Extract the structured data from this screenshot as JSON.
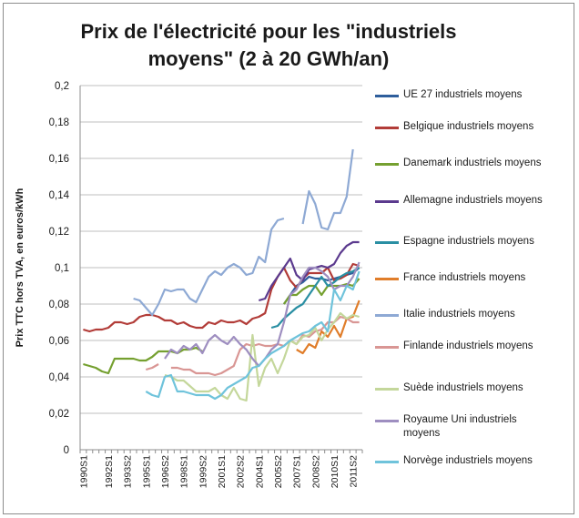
{
  "chart_data": {
    "type": "line",
    "title": "Prix de l'électricité pour les \"industriels moyens\" (2 à 20 GWh/an)",
    "ylabel": "Prix TTC hors TVA, en euros/kWh",
    "xlabel": "",
    "ylim": [
      0,
      0.2
    ],
    "yticks": [
      "0",
      "0,02",
      "0,04",
      "0,06",
      "0,08",
      "0,1",
      "0,12",
      "0,14",
      "0,16",
      "0,18",
      "0,2"
    ],
    "x": [
      "1990S1",
      "1990S2",
      "1991S1",
      "1991S2",
      "1992S1",
      "1992S2",
      "1993S1",
      "1993S2",
      "1994S1",
      "1994S2",
      "1995S1",
      "1995S2",
      "1996S1",
      "1996S2",
      "1997S1",
      "1997S2",
      "1998S1",
      "1998S2",
      "1999S1",
      "1999S2",
      "2000S1",
      "2000S2",
      "2001S1",
      "2001S2",
      "2002S1",
      "2002S2",
      "2003S1",
      "2003S2",
      "2004S1",
      "2004S2",
      "2005S1",
      "2005S2",
      "2006S1",
      "2006S2",
      "2007S1",
      "2007S2",
      "2008S1",
      "2008S2",
      "2009S1",
      "2009S2",
      "2010S1",
      "2010S2",
      "2011S1",
      "2011S2",
      "2012S1"
    ],
    "xticklabels": [
      "1990S1",
      "1992S1",
      "1993S2",
      "1995S1",
      "1996S2",
      "1998S1",
      "1999S2",
      "2001S1",
      "2002S2",
      "2004S1",
      "2005S2",
      "2007S1",
      "2008S2",
      "2010S1",
      "2011S2"
    ],
    "legend_position": "right",
    "grid": "horizontal",
    "series": [
      {
        "name": "UE 27 industriels moyens",
        "color": "#2e5e9c",
        "values": [
          null,
          null,
          null,
          null,
          null,
          null,
          null,
          null,
          null,
          null,
          null,
          null,
          null,
          null,
          null,
          null,
          null,
          null,
          null,
          null,
          null,
          null,
          null,
          null,
          null,
          null,
          null,
          null,
          null,
          null,
          null,
          null,
          0.08,
          0.085,
          0.09,
          0.092,
          0.095,
          0.094,
          0.094,
          0.093,
          0.094,
          0.095,
          0.096,
          0.097,
          0.1
        ]
      },
      {
        "name": "Belgique industriels moyens",
        "color": "#b23c38",
        "values": [
          0.066,
          0.065,
          0.066,
          0.066,
          0.067,
          0.07,
          0.07,
          0.069,
          0.07,
          0.073,
          0.074,
          0.074,
          0.073,
          0.071,
          0.071,
          0.069,
          0.07,
          0.068,
          0.067,
          0.067,
          0.07,
          0.069,
          0.071,
          0.07,
          0.07,
          0.071,
          0.069,
          0.072,
          0.073,
          0.075,
          0.088,
          0.095,
          0.1,
          0.093,
          0.089,
          0.094,
          0.097,
          0.097,
          0.097,
          0.1,
          0.093,
          0.094,
          0.096,
          0.102,
          0.101
        ]
      },
      {
        "name": "Danemark industriels moyens",
        "color": "#75a030",
        "values": [
          0.047,
          0.046,
          0.045,
          0.043,
          0.042,
          0.05,
          0.05,
          0.05,
          0.05,
          0.049,
          0.049,
          0.051,
          0.054,
          0.054,
          0.054,
          0.053,
          0.055,
          0.055,
          0.056,
          0.054,
          null,
          null,
          null,
          null,
          null,
          null,
          null,
          null,
          null,
          null,
          null,
          null,
          0.08,
          0.085,
          0.085,
          0.088,
          0.09,
          0.09,
          0.085,
          0.09,
          0.09,
          0.09,
          0.091,
          0.09,
          0.094
        ]
      },
      {
        "name": "Allemagne industriels moyens",
        "color": "#5b3a8e",
        "values": [
          null,
          null,
          null,
          null,
          null,
          null,
          null,
          null,
          null,
          null,
          null,
          null,
          null,
          null,
          null,
          null,
          null,
          null,
          null,
          null,
          null,
          null,
          null,
          null,
          null,
          null,
          null,
          null,
          0.082,
          0.083,
          0.09,
          0.095,
          0.1,
          0.105,
          0.096,
          0.093,
          0.099,
          0.1,
          0.101,
          0.1,
          0.102,
          0.108,
          0.112,
          0.114,
          0.114
        ]
      },
      {
        "name": "Espagne industriels moyens",
        "color": "#2a8fa3",
        "values": [
          null,
          null,
          null,
          null,
          null,
          null,
          null,
          null,
          null,
          null,
          null,
          null,
          null,
          null,
          null,
          null,
          null,
          null,
          null,
          null,
          null,
          null,
          null,
          null,
          null,
          null,
          null,
          null,
          null,
          null,
          0.067,
          0.068,
          0.072,
          0.075,
          0.078,
          0.08,
          0.085,
          0.09,
          0.095,
          0.09,
          0.092,
          0.095,
          0.097,
          0.098,
          0.1
        ]
      },
      {
        "name": "France industriels moyens",
        "color": "#e07d2a",
        "values": [
          null,
          null,
          null,
          null,
          null,
          null,
          null,
          null,
          null,
          null,
          null,
          null,
          null,
          null,
          null,
          null,
          null,
          null,
          null,
          null,
          null,
          null,
          null,
          null,
          null,
          null,
          null,
          null,
          null,
          null,
          null,
          null,
          null,
          null,
          0.055,
          0.053,
          0.058,
          0.056,
          0.065,
          0.062,
          0.068,
          0.062,
          0.072,
          0.073,
          0.082
        ]
      },
      {
        "name": "Italie  industriels moyens",
        "color": "#8ea9d4",
        "values": [
          null,
          null,
          null,
          null,
          null,
          null,
          null,
          null,
          0.083,
          0.082,
          0.078,
          0.074,
          0.08,
          0.088,
          0.087,
          0.088,
          0.088,
          0.083,
          0.081,
          0.088,
          0.095,
          0.098,
          0.096,
          0.1,
          0.102,
          0.1,
          0.096,
          0.097,
          0.106,
          0.103,
          0.121,
          0.126,
          0.127,
          null,
          null,
          0.124,
          0.142,
          0.135,
          0.122,
          0.121,
          0.13,
          0.13,
          0.139,
          0.165,
          null
        ]
      },
      {
        "name": "Finlande industriels moyens",
        "color": "#d99694",
        "values": [
          null,
          null,
          null,
          null,
          null,
          null,
          null,
          null,
          null,
          null,
          0.044,
          0.045,
          0.047,
          null,
          0.045,
          0.045,
          0.044,
          0.044,
          0.042,
          0.042,
          0.042,
          0.041,
          0.042,
          0.044,
          0.046,
          0.055,
          0.058,
          0.057,
          0.058,
          0.057,
          0.057,
          0.058,
          0.057,
          0.06,
          0.058,
          0.063,
          0.062,
          0.065,
          0.066,
          0.07,
          0.07,
          0.073,
          0.072,
          0.07,
          0.07
        ]
      },
      {
        "name": "Suède industriels moyens",
        "color": "#c4d79b",
        "values": [
          null,
          null,
          null,
          null,
          null,
          null,
          null,
          null,
          null,
          null,
          null,
          null,
          null,
          0.041,
          0.04,
          0.038,
          0.038,
          0.035,
          0.032,
          0.032,
          0.032,
          0.034,
          0.03,
          0.028,
          0.034,
          0.028,
          0.027,
          0.063,
          0.035,
          0.045,
          0.05,
          0.042,
          0.05,
          0.06,
          0.058,
          0.062,
          0.063,
          0.067,
          0.06,
          0.066,
          0.07,
          0.075,
          0.072,
          0.074,
          0.073
        ]
      },
      {
        "name": "Royaume Uni industriels moyens",
        "color": "#9e8ec0",
        "values": [
          null,
          null,
          null,
          null,
          null,
          null,
          null,
          null,
          null,
          null,
          null,
          null,
          null,
          0.05,
          0.055,
          0.053,
          0.057,
          0.055,
          0.058,
          0.053,
          0.06,
          0.063,
          0.06,
          0.058,
          0.062,
          0.058,
          0.055,
          0.05,
          0.046,
          0.05,
          0.055,
          0.058,
          0.07,
          0.085,
          0.088,
          0.095,
          0.1,
          0.1,
          0.098,
          0.095,
          0.088,
          0.09,
          0.09,
          0.095,
          0.103
        ]
      },
      {
        "name": "Norvège industriels moyens",
        "color": "#6fc3db",
        "values": [
          null,
          null,
          null,
          null,
          null,
          null,
          null,
          null,
          null,
          null,
          0.032,
          0.03,
          0.029,
          0.04,
          0.041,
          0.032,
          0.032,
          0.031,
          0.03,
          0.03,
          0.03,
          0.028,
          0.03,
          0.034,
          0.036,
          0.038,
          0.04,
          0.045,
          0.046,
          0.05,
          0.053,
          0.055,
          0.057,
          0.06,
          0.062,
          0.064,
          0.065,
          0.068,
          0.07,
          0.065,
          0.088,
          0.082,
          0.09,
          0.088,
          0.098
        ]
      }
    ]
  }
}
